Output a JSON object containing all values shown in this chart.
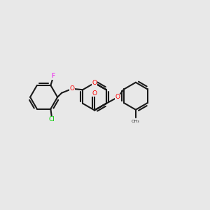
{
  "background_color": "#e8e8e8",
  "bond_color": "#1a1a1a",
  "atom_colors": {
    "O": "#ff0000",
    "F": "#ee00ee",
    "Cl": "#00cc00",
    "C": "#1a1a1a"
  },
  "lw": 1.5
}
